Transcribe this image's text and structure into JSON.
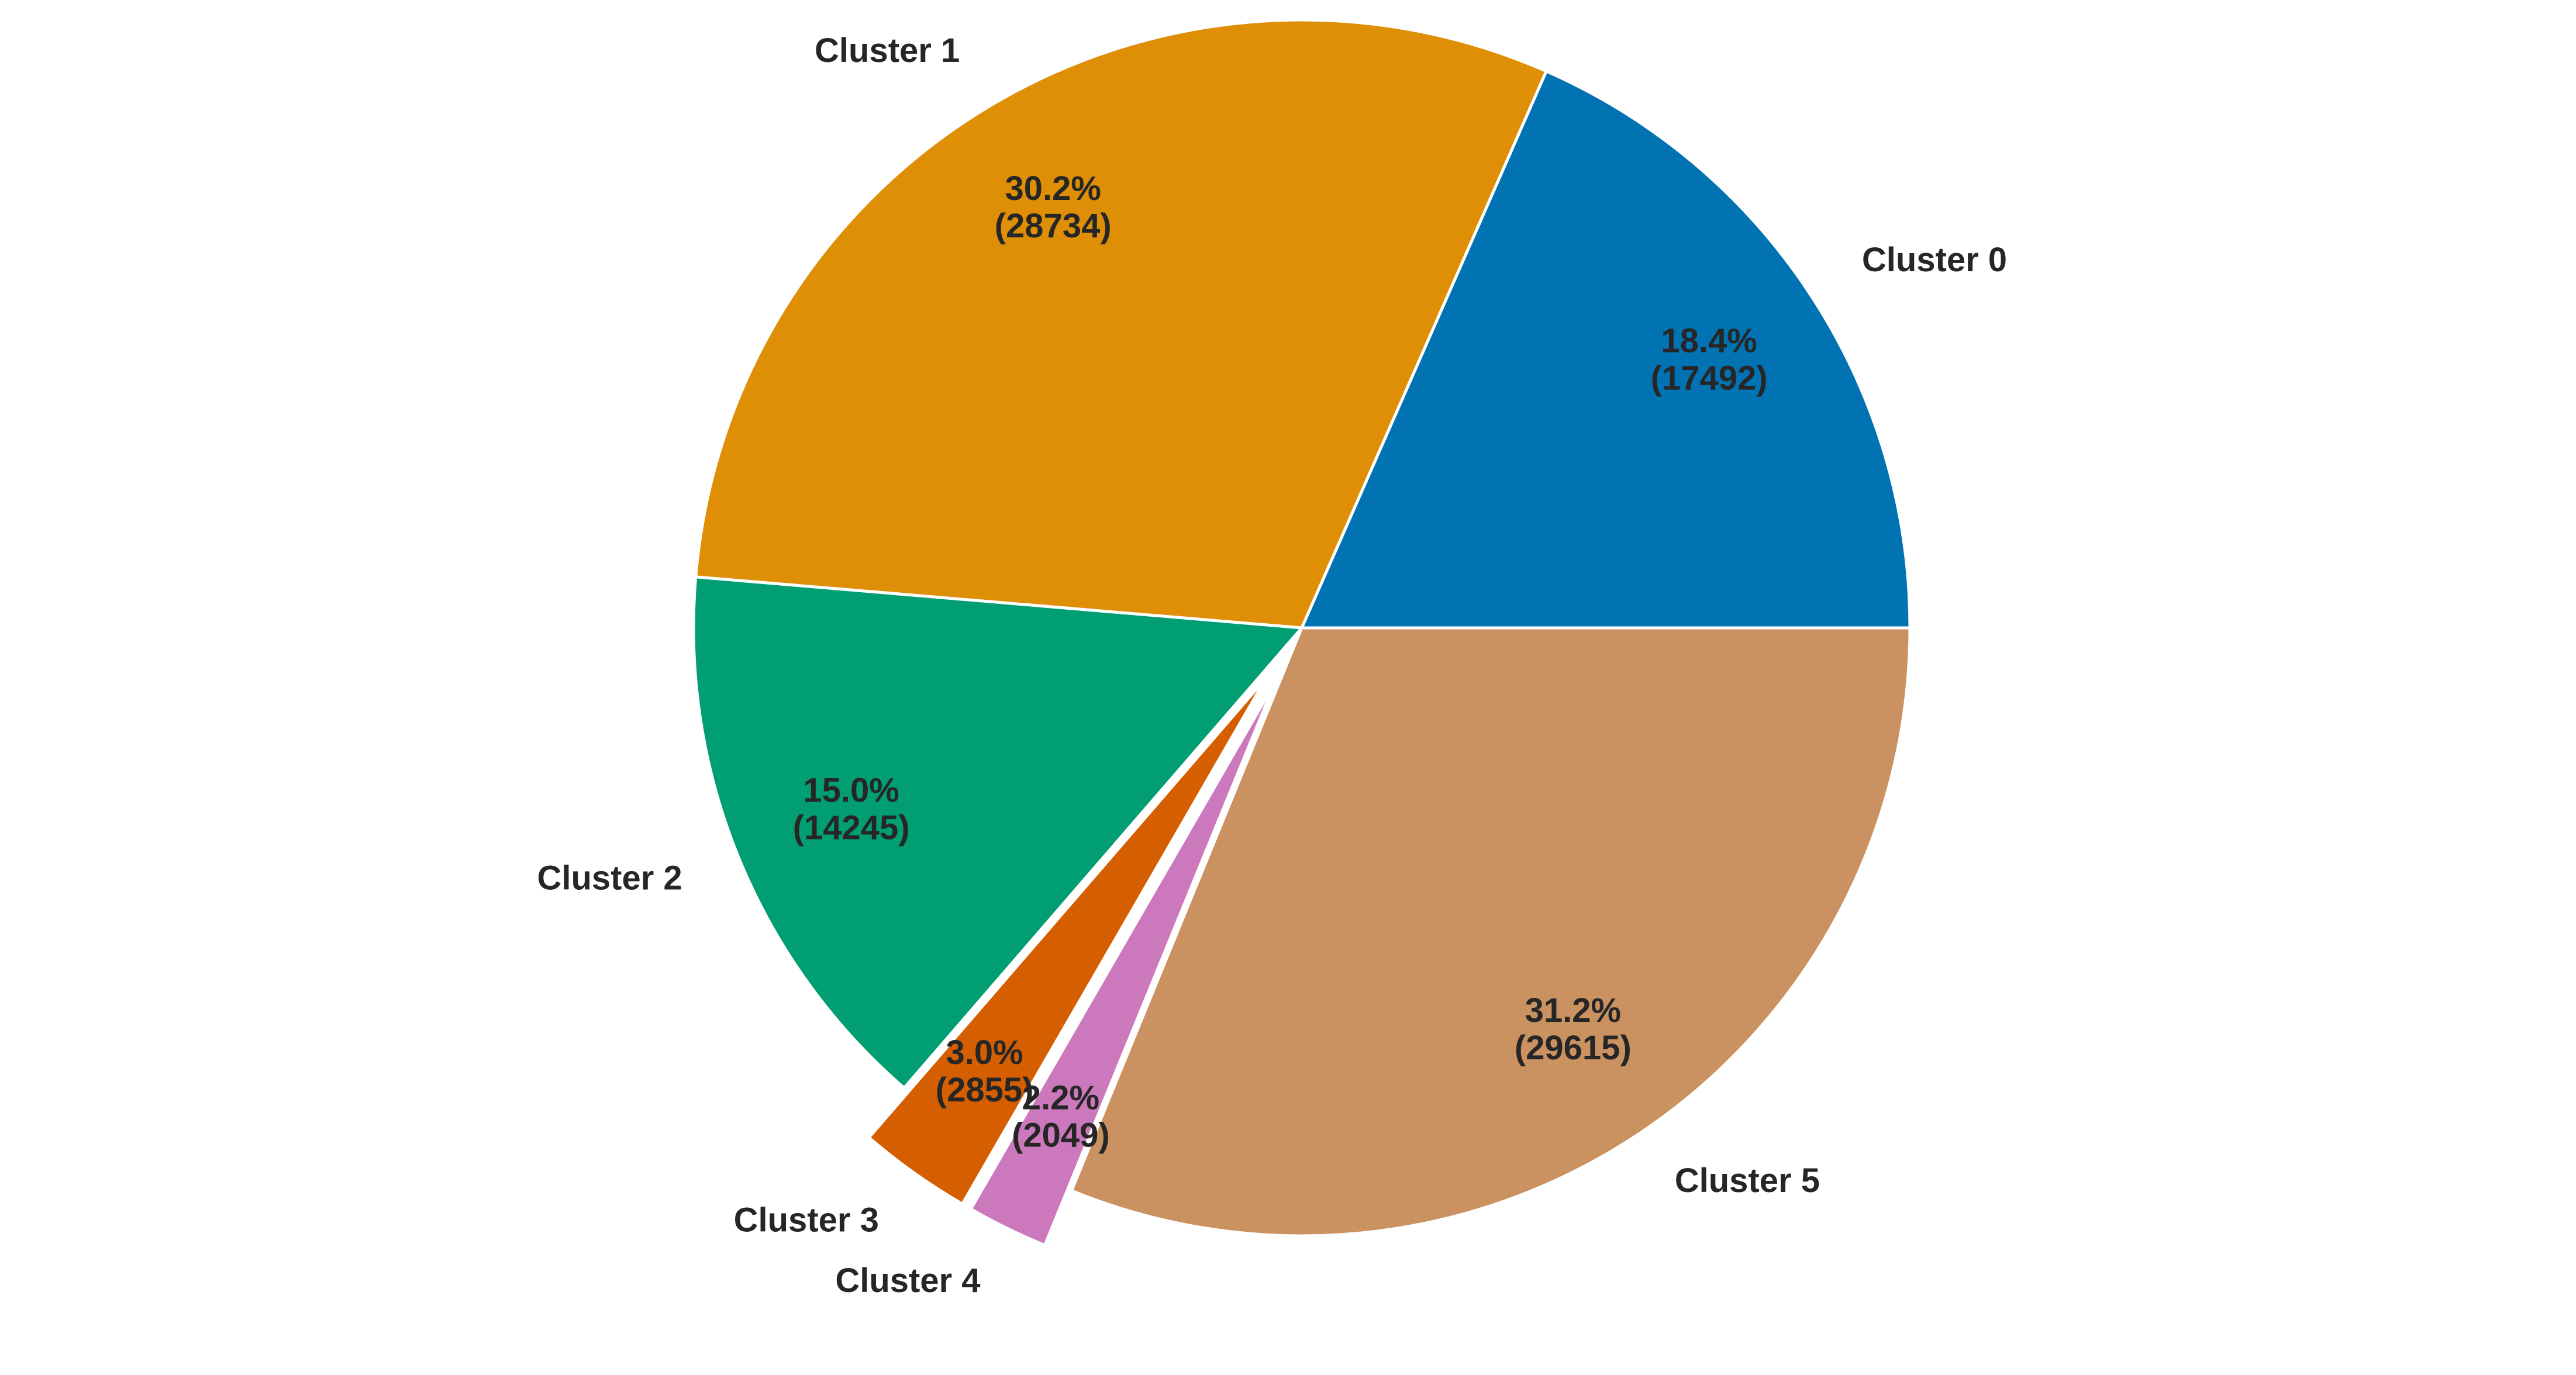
{
  "chart_data": {
    "type": "pie",
    "title": "",
    "categories": [
      "Cluster 0",
      "Cluster 1",
      "Cluster 2",
      "Cluster 3",
      "Cluster 4",
      "Cluster 5"
    ],
    "values": [
      17492,
      28734,
      14245,
      2855,
      2049,
      29615
    ],
    "percent_labels": [
      "18.4%",
      "30.2%",
      "15.0%",
      "3.0%",
      "2.2%",
      "31.2%"
    ],
    "count_labels": [
      "(17492)",
      "(28734)",
      "(14245)",
      "(2855)",
      "(2049)",
      "(29615)"
    ],
    "colors": [
      "#0173b2",
      "#de8f05",
      "#029e73",
      "#d55e00",
      "#cc78bc",
      "#ca9161"
    ],
    "exploded": [
      false,
      false,
      false,
      true,
      true,
      false
    ],
    "start_angle_deg": 0,
    "direction": "counterclockwise",
    "legend": "none"
  }
}
